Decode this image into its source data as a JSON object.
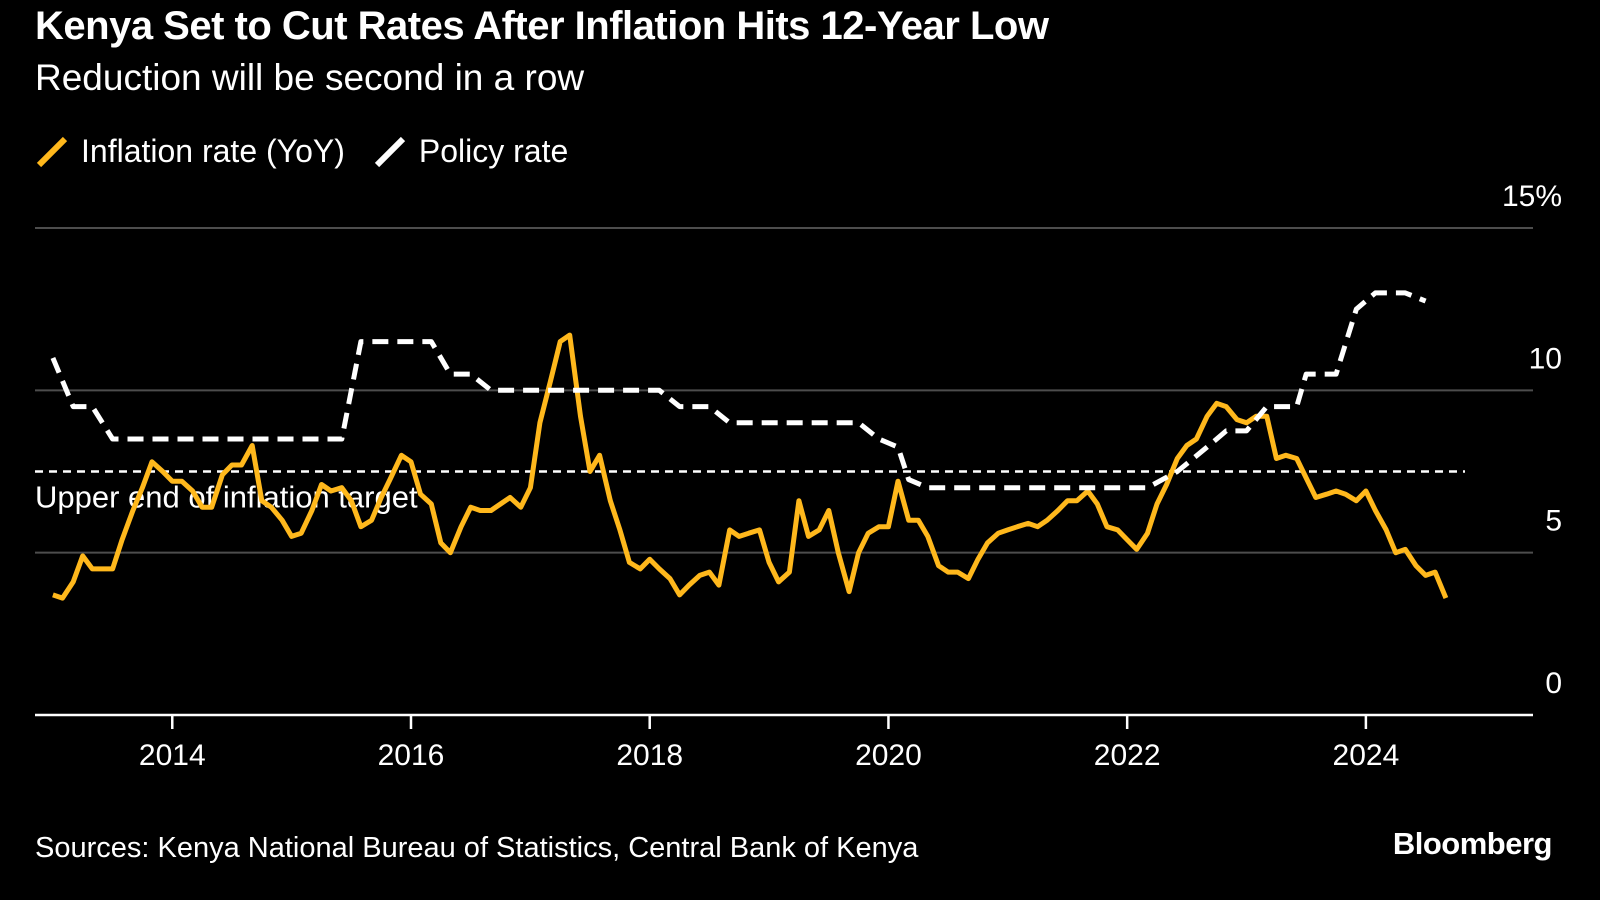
{
  "colors": {
    "inflation": "#ffb81c",
    "policy": "#ffffff",
    "grid": "#4d4d4d",
    "background": "#000000"
  },
  "source": "Sources: Kenya National Bureau of Statistics, Central Bank of Kenya",
  "brand": "Bloomberg",
  "chart_data": {
    "type": "line",
    "title": "Kenya Set to Cut Rates After Inflation Hits 12-Year Low",
    "subtitle": "Reduction will be second in a row",
    "legend_placement": "top-left",
    "grid": true,
    "xlim": [
      2012.85,
      2025.4
    ],
    "ylim": [
      0,
      15
    ],
    "x_ticks": [
      {
        "value": 2014,
        "label": "2014"
      },
      {
        "value": 2016,
        "label": "2016"
      },
      {
        "value": 2018,
        "label": "2018"
      },
      {
        "value": 2020,
        "label": "2020"
      },
      {
        "value": 2022,
        "label": "2022"
      },
      {
        "value": 2024,
        "label": "2024"
      }
    ],
    "y_ticks": [
      {
        "value": 0,
        "label": "0"
      },
      {
        "value": 5,
        "label": "5"
      },
      {
        "value": 10,
        "label": "10"
      },
      {
        "value": 15,
        "label": "15%"
      }
    ],
    "reference_line": {
      "value": 7.5,
      "label": "Upper end of inflation target"
    },
    "series": [
      {
        "name": "Inflation rate (YoY)",
        "color": "#ffb81c",
        "style": "solid",
        "points": [
          [
            2013.0,
            3.7
          ],
          [
            2013.08,
            3.6
          ],
          [
            2013.17,
            4.1
          ],
          [
            2013.25,
            4.9
          ],
          [
            2013.33,
            4.5
          ],
          [
            2013.42,
            4.5
          ],
          [
            2013.5,
            4.5
          ],
          [
            2013.58,
            5.4
          ],
          [
            2013.67,
            6.3
          ],
          [
            2013.75,
            7.0
          ],
          [
            2013.83,
            7.8
          ],
          [
            2013.92,
            7.5
          ],
          [
            2014.0,
            7.2
          ],
          [
            2014.08,
            7.2
          ],
          [
            2014.17,
            6.9
          ],
          [
            2014.25,
            6.4
          ],
          [
            2014.33,
            6.4
          ],
          [
            2014.42,
            7.4
          ],
          [
            2014.5,
            7.7
          ],
          [
            2014.58,
            7.7
          ],
          [
            2014.67,
            8.3
          ],
          [
            2014.75,
            6.6
          ],
          [
            2014.83,
            6.4
          ],
          [
            2014.92,
            6.0
          ],
          [
            2015.0,
            5.5
          ],
          [
            2015.08,
            5.6
          ],
          [
            2015.17,
            6.3
          ],
          [
            2015.25,
            7.1
          ],
          [
            2015.33,
            6.9
          ],
          [
            2015.42,
            7.0
          ],
          [
            2015.5,
            6.6
          ],
          [
            2015.58,
            5.8
          ],
          [
            2015.67,
            6.0
          ],
          [
            2015.75,
            6.7
          ],
          [
            2015.83,
            7.3
          ],
          [
            2015.92,
            8.0
          ],
          [
            2016.0,
            7.8
          ],
          [
            2016.08,
            6.8
          ],
          [
            2016.17,
            6.5
          ],
          [
            2016.25,
            5.3
          ],
          [
            2016.33,
            5.0
          ],
          [
            2016.42,
            5.8
          ],
          [
            2016.5,
            6.4
          ],
          [
            2016.58,
            6.3
          ],
          [
            2016.67,
            6.3
          ],
          [
            2016.75,
            6.5
          ],
          [
            2016.83,
            6.7
          ],
          [
            2016.92,
            6.4
          ],
          [
            2017.0,
            7.0
          ],
          [
            2017.08,
            9.0
          ],
          [
            2017.17,
            10.3
          ],
          [
            2017.25,
            11.5
          ],
          [
            2017.33,
            11.7
          ],
          [
            2017.42,
            9.2
          ],
          [
            2017.5,
            7.5
          ],
          [
            2017.58,
            8.0
          ],
          [
            2017.67,
            6.6
          ],
          [
            2017.75,
            5.7
          ],
          [
            2017.83,
            4.7
          ],
          [
            2017.92,
            4.5
          ],
          [
            2018.0,
            4.8
          ],
          [
            2018.08,
            4.5
          ],
          [
            2018.17,
            4.2
          ],
          [
            2018.25,
            3.7
          ],
          [
            2018.33,
            4.0
          ],
          [
            2018.42,
            4.3
          ],
          [
            2018.5,
            4.4
          ],
          [
            2018.58,
            4.0
          ],
          [
            2018.67,
            5.7
          ],
          [
            2018.75,
            5.5
          ],
          [
            2018.83,
            5.6
          ],
          [
            2018.92,
            5.7
          ],
          [
            2019.0,
            4.7
          ],
          [
            2019.08,
            4.1
          ],
          [
            2019.17,
            4.4
          ],
          [
            2019.25,
            6.6
          ],
          [
            2019.33,
            5.5
          ],
          [
            2019.42,
            5.7
          ],
          [
            2019.5,
            6.3
          ],
          [
            2019.58,
            5.0
          ],
          [
            2019.67,
            3.8
          ],
          [
            2019.75,
            5.0
          ],
          [
            2019.83,
            5.6
          ],
          [
            2019.92,
            5.8
          ],
          [
            2020.0,
            5.8
          ],
          [
            2020.08,
            7.2
          ],
          [
            2020.17,
            6.0
          ],
          [
            2020.25,
            6.0
          ],
          [
            2020.33,
            5.5
          ],
          [
            2020.42,
            4.6
          ],
          [
            2020.5,
            4.4
          ],
          [
            2020.58,
            4.4
          ],
          [
            2020.67,
            4.2
          ],
          [
            2020.75,
            4.8
          ],
          [
            2020.83,
            5.3
          ],
          [
            2020.92,
            5.6
          ],
          [
            2021.0,
            5.7
          ],
          [
            2021.08,
            5.8
          ],
          [
            2021.17,
            5.9
          ],
          [
            2021.25,
            5.8
          ],
          [
            2021.33,
            6.0
          ],
          [
            2021.42,
            6.3
          ],
          [
            2021.5,
            6.6
          ],
          [
            2021.58,
            6.6
          ],
          [
            2021.67,
            6.9
          ],
          [
            2021.75,
            6.5
          ],
          [
            2021.83,
            5.8
          ],
          [
            2021.92,
            5.7
          ],
          [
            2022.0,
            5.4
          ],
          [
            2022.08,
            5.1
          ],
          [
            2022.17,
            5.6
          ],
          [
            2022.25,
            6.5
          ],
          [
            2022.33,
            7.1
          ],
          [
            2022.42,
            7.9
          ],
          [
            2022.5,
            8.3
          ],
          [
            2022.58,
            8.5
          ],
          [
            2022.67,
            9.2
          ],
          [
            2022.75,
            9.6
          ],
          [
            2022.83,
            9.5
          ],
          [
            2022.92,
            9.1
          ],
          [
            2023.0,
            9.0
          ],
          [
            2023.08,
            9.2
          ],
          [
            2023.17,
            9.2
          ],
          [
            2023.25,
            7.9
          ],
          [
            2023.33,
            8.0
          ],
          [
            2023.42,
            7.9
          ],
          [
            2023.5,
            7.3
          ],
          [
            2023.58,
            6.7
          ],
          [
            2023.67,
            6.8
          ],
          [
            2023.75,
            6.9
          ],
          [
            2023.83,
            6.8
          ],
          [
            2023.92,
            6.6
          ],
          [
            2024.0,
            6.9
          ],
          [
            2024.08,
            6.3
          ],
          [
            2024.17,
            5.7
          ],
          [
            2024.25,
            5.0
          ],
          [
            2024.33,
            5.1
          ],
          [
            2024.42,
            4.6
          ],
          [
            2024.5,
            4.3
          ],
          [
            2024.58,
            4.4
          ],
          [
            2024.67,
            3.6
          ]
        ]
      },
      {
        "name": "Policy rate",
        "color": "#ffffff",
        "style": "dashed",
        "points": [
          [
            2013.0,
            11.0
          ],
          [
            2013.17,
            9.5
          ],
          [
            2013.33,
            9.5
          ],
          [
            2013.5,
            8.5
          ],
          [
            2014.25,
            8.5
          ],
          [
            2014.5,
            8.5
          ],
          [
            2014.67,
            8.5
          ],
          [
            2015.42,
            8.5
          ],
          [
            2015.58,
            11.5
          ],
          [
            2016.0,
            11.5
          ],
          [
            2016.17,
            11.5
          ],
          [
            2016.33,
            10.5
          ],
          [
            2016.5,
            10.5
          ],
          [
            2016.67,
            10.0
          ],
          [
            2016.92,
            10.0
          ],
          [
            2017.0,
            10.0
          ],
          [
            2018.0,
            10.0
          ],
          [
            2018.08,
            10.0
          ],
          [
            2018.25,
            9.5
          ],
          [
            2018.5,
            9.5
          ],
          [
            2018.67,
            9.0
          ],
          [
            2019.0,
            9.0
          ],
          [
            2019.5,
            9.0
          ],
          [
            2019.75,
            9.0
          ],
          [
            2019.92,
            8.5
          ],
          [
            2020.08,
            8.25
          ],
          [
            2020.17,
            7.25
          ],
          [
            2020.33,
            7.0
          ],
          [
            2021.0,
            7.0
          ],
          [
            2021.5,
            7.0
          ],
          [
            2022.0,
            7.0
          ],
          [
            2022.17,
            7.0
          ],
          [
            2022.42,
            7.5
          ],
          [
            2022.67,
            8.25
          ],
          [
            2022.83,
            8.75
          ],
          [
            2023.0,
            8.75
          ],
          [
            2023.17,
            9.5
          ],
          [
            2023.42,
            9.5
          ],
          [
            2023.5,
            10.5
          ],
          [
            2023.75,
            10.5
          ],
          [
            2023.92,
            12.5
          ],
          [
            2024.08,
            13.0
          ],
          [
            2024.33,
            13.0
          ],
          [
            2024.5,
            12.75
          ]
        ]
      }
    ]
  }
}
